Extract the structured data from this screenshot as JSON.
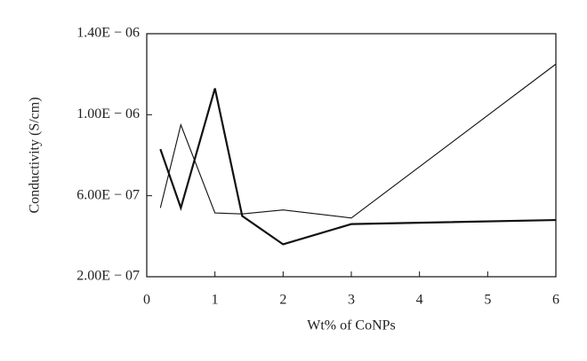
{
  "chart_data": {
    "type": "line",
    "x_label": "Wt% of CoNPs",
    "y_label": "Conductivity (S/cm)",
    "x": [
      0.2,
      0.5,
      1,
      1.4,
      2,
      3,
      6
    ],
    "series": [
      {
        "color": "#111111",
        "line_width": 2.2,
        "values": [
          8.3e-07,
          5.4e-07,
          1.13e-06,
          5e-07,
          3.6e-07,
          4.6e-07,
          4.8e-07
        ]
      },
      {
        "color": "#111111",
        "line_width": 1.1,
        "values": [
          5.4e-07,
          9.5e-07,
          5.15e-07,
          5.1e-07,
          5.3e-07,
          4.9e-07,
          1.25e-06
        ]
      }
    ],
    "xlim": [
      0,
      6
    ],
    "xticks": [
      0,
      1,
      2,
      3,
      4,
      5,
      6
    ],
    "ylim": [
      2e-07,
      1.4e-06
    ],
    "yticks": [
      {
        "value": 2e-07,
        "label": "2.00E − 07"
      },
      {
        "value": 6e-07,
        "label": "6.00E − 07"
      },
      {
        "value": 1e-06,
        "label": "1.00E − 06"
      },
      {
        "value": 1.4e-06,
        "label": "1.40E − 06"
      }
    ]
  }
}
